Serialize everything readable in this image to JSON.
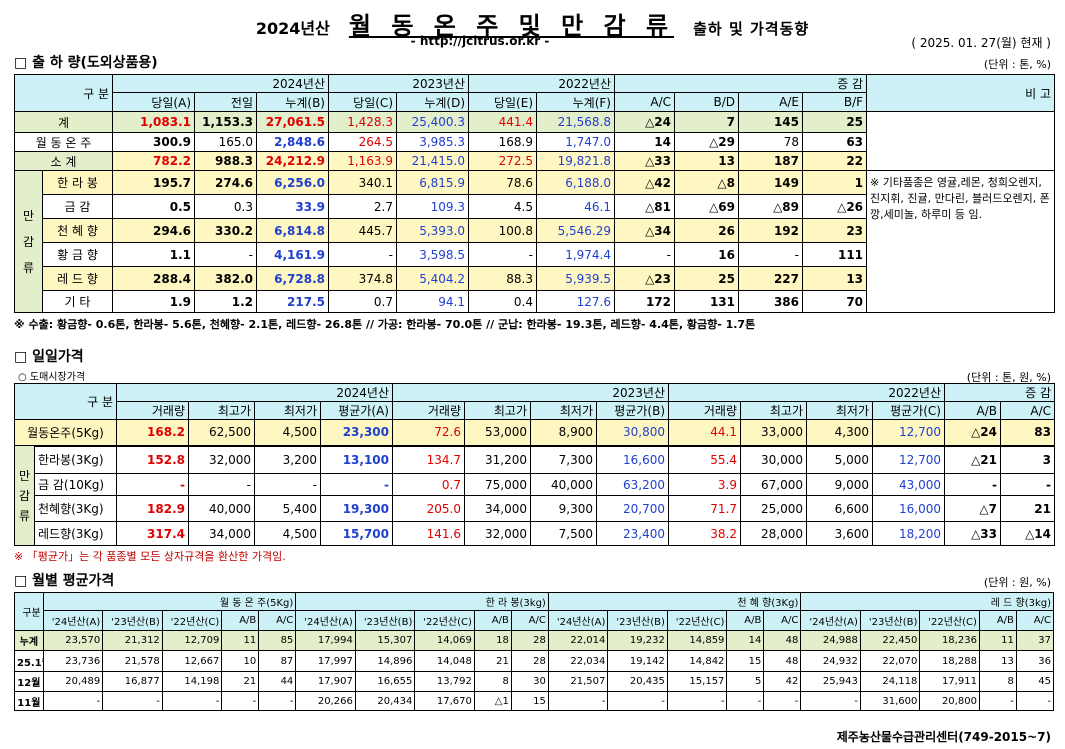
{
  "header": {
    "year_prefix": "2024년산",
    "main_title": "월 동 온 주 및 만 감 류",
    "sub_title": "출하 및 가격동향",
    "url": "- http://jcitrus.or.kr -",
    "date": "( 2025. 01. 27(월) 현재 )"
  },
  "shipment": {
    "title": "□ 출 하 량(도외상품용)",
    "unit": "(단위 : 톤, %)",
    "col_gubun": "구 분",
    "year_heads": [
      "2024년산",
      "2023년산",
      "2022년산"
    ],
    "change_head": "증 감",
    "remark_head": "비 고",
    "sub_heads": [
      "당일(A)",
      "전일",
      "누계(B)",
      "당일(C)",
      "누계(D)",
      "당일(E)",
      "누계(F)",
      "A/C",
      "B/D",
      "A/E",
      "B/F"
    ],
    "side_label": [
      "만",
      "감",
      "류"
    ],
    "rows": [
      {
        "label": "계",
        "v": [
          "1,083.1",
          "1,153.3",
          "27,061.5",
          "1,428.3",
          "25,400.3",
          "441.4",
          "21,568.8",
          "△24",
          "7",
          "145",
          "25"
        ]
      },
      {
        "label": "월 동 온 주",
        "v": [
          "300.9",
          "165.0",
          "2,848.6",
          "264.5",
          "3,985.3",
          "168.9",
          "1,747.0",
          "14",
          "△29",
          "78",
          "63"
        ]
      },
      {
        "label": "소 계",
        "v": [
          "782.2",
          "988.3",
          "24,212.9",
          "1,163.9",
          "21,415.0",
          "272.5",
          "19,821.8",
          "△33",
          "13",
          "187",
          "22"
        ]
      },
      {
        "label": "한 라 봉",
        "v": [
          "195.7",
          "274.6",
          "6,256.0",
          "340.1",
          "6,815.9",
          "78.6",
          "6,188.0",
          "△42",
          "△8",
          "149",
          "1"
        ]
      },
      {
        "label": "금 감",
        "v": [
          "0.5",
          "0.3",
          "33.9",
          "2.7",
          "109.3",
          "4.5",
          "46.1",
          "△81",
          "△69",
          "△89",
          "△26"
        ]
      },
      {
        "label": "천 혜 향",
        "v": [
          "294.6",
          "330.2",
          "6,814.8",
          "445.7",
          "5,393.0",
          "100.8",
          "5,546.29",
          "△34",
          "26",
          "192",
          "23"
        ]
      },
      {
        "label": "황 금 향",
        "v": [
          "1.1",
          "-",
          "4,161.9",
          "-",
          "3,598.5",
          "-",
          "1,974.4",
          "-",
          "16",
          "-",
          "111"
        ]
      },
      {
        "label": "레 드 향",
        "v": [
          "288.4",
          "382.0",
          "6,728.8",
          "374.8",
          "5,404.2",
          "88.3",
          "5,939.5",
          "△23",
          "25",
          "227",
          "13"
        ]
      },
      {
        "label": "기 타",
        "v": [
          "1.9",
          "1.2",
          "217.5",
          "0.7",
          "94.1",
          "0.4",
          "127.6",
          "172",
          "131",
          "386",
          "70"
        ]
      }
    ],
    "remark": "※ 기타품종은 영귤,레몬, 청희오렌지, 진지휘, 진귤, 만다린, 블러드오렌지, 폰깡,세미놀, 하루미 등 임.",
    "note": "※ 수출: 황금향- 0.6톤, 한라봉- 5.6톤, 천혜향- 2.1톤, 레드향- 26.8톤 // 가공: 한라봉- 70.0톤 // 군납: 한라봉- 19.3톤, 레드향- 4.4톤, 황금향- 1.7톤"
  },
  "daily": {
    "title": "□ 일일가격",
    "subtitle": "○ 도매시장가격",
    "unit": "(단위 : 톤, 원, %)",
    "col_gubun": "구 분",
    "year_heads": [
      "2024년산",
      "2023년산",
      "2022년산"
    ],
    "change_head": "증 감",
    "sub_heads": [
      "거래량",
      "최고가",
      "최저가",
      "평균가(A)",
      "거래량",
      "최고가",
      "최저가",
      "평균가(B)",
      "거래량",
      "최고가",
      "최저가",
      "평균가(C)",
      "A/B",
      "A/C"
    ],
    "side_label": [
      "만",
      "감",
      "류"
    ],
    "rows": [
      {
        "label": "월동온주(5Kg)",
        "v": [
          "168.2",
          "62,500",
          "4,500",
          "23,300",
          "72.6",
          "53,000",
          "8,900",
          "30,800",
          "44.1",
          "33,000",
          "4,300",
          "12,700",
          "△24",
          "83"
        ]
      },
      {
        "label": "한라봉(3Kg)",
        "v": [
          "152.8",
          "32,000",
          "3,200",
          "13,100",
          "134.7",
          "31,200",
          "7,300",
          "16,600",
          "55.4",
          "30,000",
          "5,000",
          "12,700",
          "△21",
          "3"
        ]
      },
      {
        "label": "금 감(10Kg)",
        "v": [
          "-",
          "-",
          "-",
          "-",
          "0.7",
          "75,000",
          "40,000",
          "63,200",
          "3.9",
          "67,000",
          "9,000",
          "43,000",
          "-",
          "-"
        ]
      },
      {
        "label": "천혜향(3Kg)",
        "v": [
          "182.9",
          "40,000",
          "5,400",
          "19,300",
          "205.0",
          "34,000",
          "9,300",
          "20,700",
          "71.7",
          "25,000",
          "6,600",
          "16,000",
          "△7",
          "21"
        ]
      },
      {
        "label": "레드향(3Kg)",
        "v": [
          "317.4",
          "34,000",
          "4,500",
          "15,700",
          "141.6",
          "32,000",
          "7,500",
          "23,400",
          "38.2",
          "28,000",
          "3,600",
          "18,200",
          "△33",
          "△14"
        ]
      }
    ],
    "note": "※ 「평균가」는 각 품종별 모든 상자규격을 환산한 가격임."
  },
  "monthly": {
    "title": "□ 월별 평균가격",
    "unit": "(단위 : 원, %)",
    "col_gubun": "구분",
    "group_heads": [
      "월 동 온 주(5Kg)",
      "한 라 봉(3kg)",
      "천 혜 향(3Kg)",
      "레 드 향(3kg)"
    ],
    "sub_heads": [
      "'24년산(A)",
      "'23년산(B)",
      "'22년산(C)",
      "A/B",
      "A/C"
    ],
    "rows": [
      {
        "label": "누계",
        "v": [
          "23,570",
          "21,312",
          "12,709",
          "11",
          "85",
          "17,994",
          "15,307",
          "14,069",
          "18",
          "28",
          "22,014",
          "19,232",
          "14,859",
          "14",
          "48",
          "24,988",
          "22,450",
          "18,236",
          "11",
          "37"
        ]
      },
      {
        "label": "25.1월",
        "v": [
          "23,736",
          "21,578",
          "12,667",
          "10",
          "87",
          "17,997",
          "14,896",
          "14,048",
          "21",
          "28",
          "22,034",
          "19,142",
          "14,842",
          "15",
          "48",
          "24,932",
          "22,070",
          "18,288",
          "13",
          "36"
        ]
      },
      {
        "label": "12월",
        "v": [
          "20,489",
          "16,877",
          "14,198",
          "21",
          "44",
          "17,907",
          "16,655",
          "13,792",
          "8",
          "30",
          "21,507",
          "20,435",
          "15,157",
          "5",
          "42",
          "25,943",
          "24,118",
          "17,911",
          "8",
          "45"
        ]
      },
      {
        "label": "11월",
        "v": [
          "-",
          "-",
          "-",
          "-",
          "-",
          "20,266",
          "20,434",
          "17,670",
          "△1",
          "15",
          "-",
          "-",
          "-",
          "-",
          "-",
          "-",
          "31,600",
          "20,800",
          "-",
          "-"
        ]
      }
    ]
  },
  "footer": "제주농산물수급관리센터(749-2015~7)"
}
